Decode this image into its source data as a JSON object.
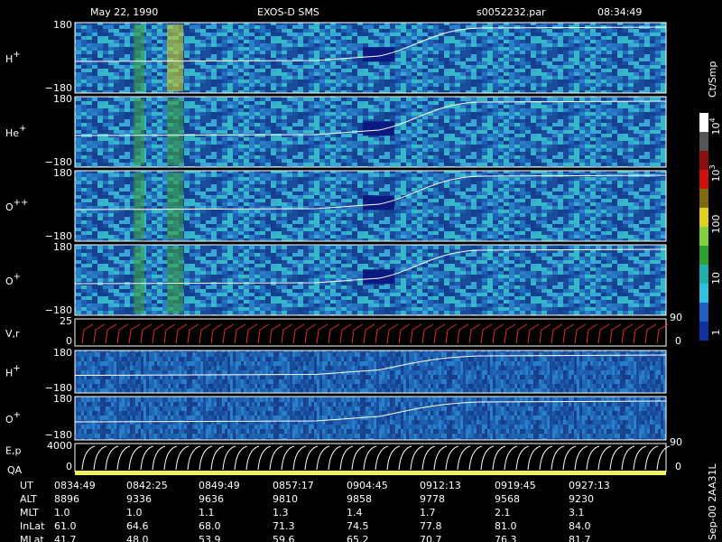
{
  "header": {
    "date": "May 22, 1990",
    "instrument": "EXOS-D SMS",
    "file": "s0052232.par",
    "time": "08:34:49"
  },
  "panels": [
    {
      "label": "H",
      "sup": "+",
      "top": "180",
      "bottom": "−180"
    },
    {
      "label": "He",
      "sup": "+",
      "top": "180",
      "bottom": "−180"
    },
    {
      "label": "O",
      "sup": "++",
      "top": "180",
      "bottom": "−180"
    },
    {
      "label": "O",
      "sup": "+",
      "top": "180",
      "bottom": "−180"
    },
    {
      "label": "V,r",
      "top": "25",
      "bottom": "0",
      "right_top": "90",
      "right_bottom": "0"
    },
    {
      "label": "H",
      "sup": "+",
      "top": "180",
      "bottom": "−180"
    },
    {
      "label": "O",
      "sup": "+",
      "top": "180",
      "bottom": "−180"
    },
    {
      "label": "E,p",
      "label2": "QA",
      "top": "4000",
      "bottom": "0",
      "right_top": "90",
      "right_bottom": "0"
    }
  ],
  "colorbar": {
    "unit": "Ct/Smp",
    "ticks": [
      {
        "base": "10",
        "sup": "4"
      },
      {
        "base": "10",
        "sup": "3"
      },
      {
        "base": "100"
      },
      {
        "base": "10"
      },
      {
        "base": "1"
      }
    ]
  },
  "footer": {
    "rows": [
      [
        "UT",
        "0834:49",
        "0842:25",
        "0849:49",
        "0857:17",
        "0904:45",
        "0912:13",
        "0919:45",
        "0927:13"
      ],
      [
        "ALT",
        "8896",
        "9336",
        "9636",
        "9810",
        "9858",
        "9778",
        "9568",
        "9230"
      ],
      [
        "MLT",
        "1.0",
        "1.0",
        "1.1",
        "1.3",
        "1.4",
        "1.7",
        "2.1",
        "3.1"
      ],
      [
        "InLat",
        "61.0",
        "64.6",
        "68.0",
        "71.3",
        "74.5",
        "77.8",
        "81.0",
        "84.0"
      ],
      [
        "MLat",
        "41.7",
        "48.0",
        "53.9",
        "59.6",
        "65.2",
        "70.7",
        "76.3",
        "81.7"
      ]
    ]
  },
  "side_note": "Sep-00 2AA31L"
}
